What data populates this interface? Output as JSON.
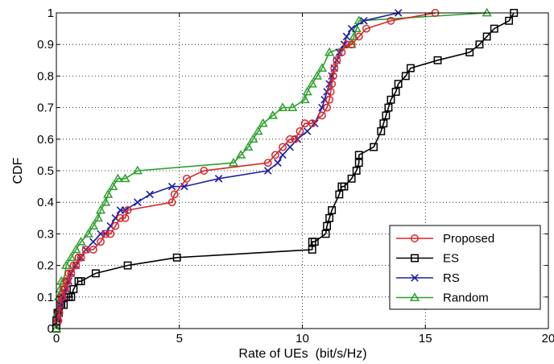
{
  "chart_data": {
    "type": "line",
    "xlabel": "Rate of UEs  (bit/s/Hz)",
    "ylabel": "CDF",
    "xlim": [
      0,
      20
    ],
    "ylim": [
      0,
      1
    ],
    "xticks": [
      0,
      5,
      10,
      15,
      20
    ],
    "yticks": [
      0,
      0.1,
      0.2,
      0.3,
      0.4,
      0.5,
      0.6,
      0.7,
      0.8,
      0.9,
      1
    ],
    "xtick_labels": [
      "0",
      "5",
      "10",
      "15",
      "20"
    ],
    "ytick_labels": [
      "0",
      "0.1",
      "0.2",
      "0.3",
      "0.4",
      "0.5",
      "0.6",
      "0.7",
      "0.8",
      "0.9",
      "1"
    ],
    "grid": true,
    "legend_position": "bottom-right",
    "series": [
      {
        "name": "Proposed",
        "color": "#d62728",
        "marker": "circle",
        "x": [
          0.05,
          0.08,
          0.1,
          0.12,
          0.15,
          0.2,
          0.25,
          0.3,
          0.35,
          0.4,
          0.45,
          0.5,
          0.6,
          0.7,
          0.8,
          0.9,
          1.0,
          1.2,
          1.5,
          1.8,
          2.0,
          2.2,
          2.4,
          2.6,
          2.8,
          2.9,
          4.7,
          4.8,
          5.3,
          6.0,
          8.6,
          8.9,
          9.2,
          9.5,
          9.7,
          9.9,
          10.1,
          10.4,
          10.8,
          11.0,
          11.1,
          11.15,
          11.2,
          11.25,
          11.3,
          11.4,
          11.6,
          11.8,
          12.0,
          12.3,
          12.6,
          13.6,
          15.4
        ],
        "y": [
          0.025,
          0.025,
          0.05,
          0.05,
          0.075,
          0.1,
          0.1,
          0.125,
          0.125,
          0.15,
          0.15,
          0.175,
          0.175,
          0.2,
          0.2,
          0.225,
          0.225,
          0.25,
          0.25,
          0.275,
          0.3,
          0.3,
          0.325,
          0.35,
          0.35,
          0.375,
          0.4,
          0.425,
          0.475,
          0.5,
          0.525,
          0.55,
          0.575,
          0.6,
          0.6,
          0.625,
          0.65,
          0.65,
          0.675,
          0.7,
          0.725,
          0.75,
          0.775,
          0.8,
          0.825,
          0.85,
          0.875,
          0.9,
          0.9,
          0.925,
          0.95,
          0.975,
          1.0
        ]
      },
      {
        "name": "ES",
        "color": "#000000",
        "marker": "square",
        "x": [
          0.0,
          0.0,
          0.05,
          0.1,
          0.15,
          0.2,
          0.3,
          0.4,
          0.5,
          0.6,
          0.7,
          0.9,
          1.0,
          1.6,
          2.9,
          4.9,
          10.4,
          10.4,
          10.5,
          10.95,
          11.0,
          11.1,
          11.2,
          11.5,
          11.6,
          11.7,
          12.0,
          12.2,
          12.3,
          12.3,
          12.9,
          13.2,
          13.3,
          13.4,
          13.5,
          13.6,
          13.8,
          13.9,
          14.2,
          14.4,
          15.5,
          16.8,
          17.2,
          17.5,
          17.8,
          18.4,
          18.6
        ],
        "y": [
          0.0,
          0.025,
          0.05,
          0.05,
          0.075,
          0.075,
          0.075,
          0.1,
          0.1,
          0.1,
          0.125,
          0.15,
          0.15,
          0.175,
          0.2,
          0.225,
          0.25,
          0.275,
          0.275,
          0.3,
          0.325,
          0.35,
          0.375,
          0.425,
          0.45,
          0.45,
          0.475,
          0.5,
          0.525,
          0.55,
          0.575,
          0.625,
          0.65,
          0.675,
          0.7,
          0.725,
          0.75,
          0.775,
          0.8,
          0.825,
          0.85,
          0.875,
          0.9,
          0.925,
          0.95,
          0.975,
          1.0
        ]
      },
      {
        "name": "RS",
        "color": "#1f1fa8",
        "marker": "x",
        "x": [
          0.05,
          0.1,
          0.15,
          0.2,
          0.25,
          0.3,
          0.4,
          0.5,
          0.6,
          0.8,
          1.0,
          1.2,
          1.5,
          1.8,
          2.0,
          2.2,
          2.4,
          2.6,
          2.8,
          3.3,
          3.8,
          4.7,
          5.2,
          6.6,
          8.6,
          9.0,
          9.2,
          9.5,
          9.8,
          10.2,
          10.5,
          10.8,
          10.9,
          11.0,
          11.1,
          11.2,
          11.3,
          11.4,
          11.5,
          11.7,
          11.8,
          12.0,
          12.5,
          13.9
        ],
        "y": [
          0.025,
          0.05,
          0.075,
          0.075,
          0.1,
          0.1,
          0.125,
          0.15,
          0.175,
          0.2,
          0.225,
          0.25,
          0.275,
          0.3,
          0.3,
          0.325,
          0.35,
          0.375,
          0.375,
          0.4,
          0.425,
          0.45,
          0.45,
          0.475,
          0.5,
          0.525,
          0.55,
          0.575,
          0.6,
          0.625,
          0.65,
          0.7,
          0.725,
          0.75,
          0.775,
          0.8,
          0.825,
          0.85,
          0.875,
          0.9,
          0.925,
          0.95,
          0.975,
          1.0
        ]
      },
      {
        "name": "Random",
        "color": "#2ca02c",
        "marker": "triangle",
        "x": [
          0.0,
          0.05,
          0.1,
          0.15,
          0.2,
          0.3,
          0.4,
          0.6,
          0.8,
          1.0,
          1.3,
          1.5,
          1.7,
          1.8,
          2.0,
          2.1,
          2.3,
          2.5,
          2.8,
          3.3,
          7.2,
          7.5,
          7.8,
          8.0,
          8.2,
          8.4,
          8.8,
          9.2,
          9.6,
          10.1,
          10.2,
          10.4,
          10.6,
          10.8,
          11.1,
          12.0,
          12.1,
          12.2,
          12.3,
          17.5
        ],
        "y": [
          0.0,
          0.05,
          0.1,
          0.125,
          0.15,
          0.15,
          0.2,
          0.225,
          0.25,
          0.275,
          0.3,
          0.325,
          0.35,
          0.375,
          0.4,
          0.425,
          0.45,
          0.475,
          0.475,
          0.5,
          0.525,
          0.55,
          0.575,
          0.6,
          0.625,
          0.65,
          0.675,
          0.7,
          0.7,
          0.725,
          0.75,
          0.775,
          0.8,
          0.825,
          0.875,
          0.9,
          0.925,
          0.95,
          0.975,
          1.0
        ]
      }
    ]
  }
}
